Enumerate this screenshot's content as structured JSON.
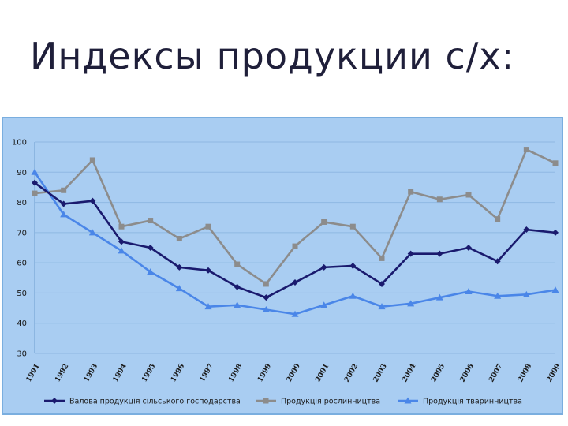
{
  "slide": {
    "title": "Индексы продукции с/х:"
  },
  "chart_data": {
    "type": "line",
    "categories": [
      "1991",
      "1992",
      "1993",
      "1994",
      "1995",
      "1996",
      "1997",
      "1998",
      "1999",
      "2000",
      "2001",
      "2002",
      "2003",
      "2004",
      "2005",
      "2006",
      "2007",
      "2008",
      "2009"
    ],
    "ylim": [
      30,
      100
    ],
    "yticks": [
      30,
      40,
      50,
      60,
      70,
      80,
      90,
      100
    ],
    "grid": true,
    "legend_position": "bottom",
    "series": [
      {
        "name": "Валова продукція сільського господарства",
        "color": "#1a1a6e",
        "marker": "diamond",
        "values": [
          86.5,
          79.5,
          80.5,
          67,
          65,
          58.5,
          57.5,
          52,
          48.5,
          53.5,
          58.5,
          59,
          53,
          63,
          63,
          65,
          60.5,
          71,
          70
        ]
      },
      {
        "name": "Продукція рослинництва",
        "color": "#8c8c8c",
        "marker": "square",
        "values": [
          83,
          84,
          94,
          72,
          74,
          68,
          72,
          59.5,
          53,
          65.5,
          73.5,
          72,
          61.5,
          83.5,
          81,
          82.5,
          74.5,
          97.5,
          93
        ]
      },
      {
        "name": "Продукція тваринництва",
        "color": "#4a86e8",
        "marker": "triangle",
        "values": [
          90,
          76,
          70,
          64,
          57,
          51.5,
          45.5,
          46,
          44.5,
          43,
          46,
          49,
          45.5,
          46.5,
          48.5,
          50.5,
          49,
          49.5,
          51
        ]
      }
    ]
  }
}
